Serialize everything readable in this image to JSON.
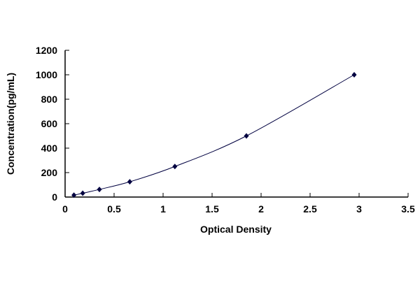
{
  "chart_data": {
    "type": "scatter",
    "title": "",
    "xlabel": "Optical Density",
    "ylabel": "Concentration(pg/mL)",
    "xlim": [
      0,
      3.5
    ],
    "ylim": [
      0,
      1200
    ],
    "xticks": [
      "0",
      "0.5",
      "1",
      "1.5",
      "2",
      "2.5",
      "3",
      "3.5"
    ],
    "yticks": [
      "0",
      "200",
      "400",
      "600",
      "800",
      "1000",
      "1200"
    ],
    "grid": false,
    "series": [
      {
        "points": [
          {
            "x": 0.09,
            "y": 15.6
          },
          {
            "x": 0.18,
            "y": 31.2
          },
          {
            "x": 0.35,
            "y": 62.5
          },
          {
            "x": 0.66,
            "y": 125
          },
          {
            "x": 1.12,
            "y": 250
          },
          {
            "x": 1.85,
            "y": 500
          },
          {
            "x": 2.95,
            "y": 1000
          }
        ],
        "marker": "diamond",
        "color": "#000040",
        "fit_curve": true
      }
    ]
  }
}
